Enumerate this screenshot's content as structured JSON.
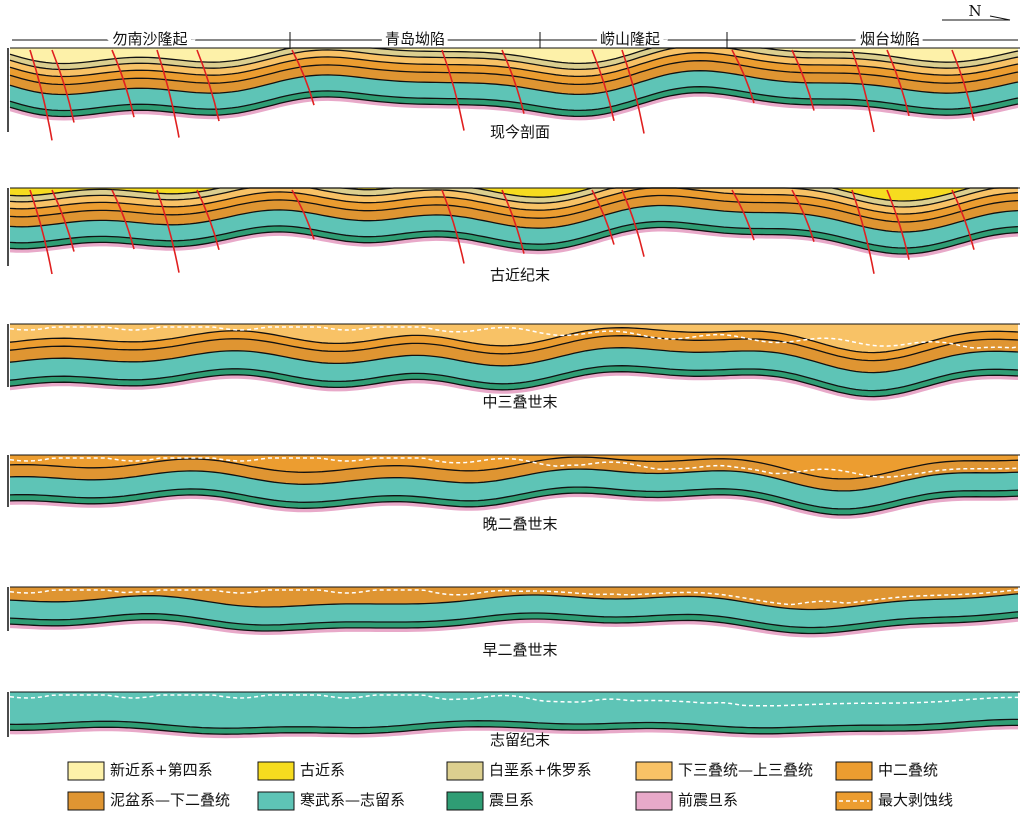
{
  "header": {
    "north": "N",
    "units": [
      "勿南沙隆起",
      "青岛坳陷",
      "崂山隆起",
      "烟台坳陷"
    ]
  },
  "sections": [
    {
      "caption": "现今剖面"
    },
    {
      "caption": "古近纪末"
    },
    {
      "caption": "中三叠世末"
    },
    {
      "caption": "晚二叠世末"
    },
    {
      "caption": "早二叠世末"
    },
    {
      "caption": "志留纪末"
    }
  ],
  "legend": [
    {
      "label": "新近系+第四系",
      "color": "#fdf1a9"
    },
    {
      "label": "古近系",
      "color": "#f6dc1f"
    },
    {
      "label": "白垩系+侏罗系",
      "color": "#dccf8f"
    },
    {
      "label": "下三叠统—上三叠统",
      "color": "#f8c266"
    },
    {
      "label": "中二叠统",
      "color": "#ec9d30"
    },
    {
      "label": "泥盆系—下二叠统",
      "color": "#df9532"
    },
    {
      "label": "寒武系—志留系",
      "color": "#5ec4b6"
    },
    {
      "label": "震旦系",
      "color": "#2f9d74"
    },
    {
      "label": "前震旦系",
      "color": "#e8a9c9"
    },
    {
      "label": "最大剥蚀线",
      "color": "#ec9d30"
    }
  ]
}
